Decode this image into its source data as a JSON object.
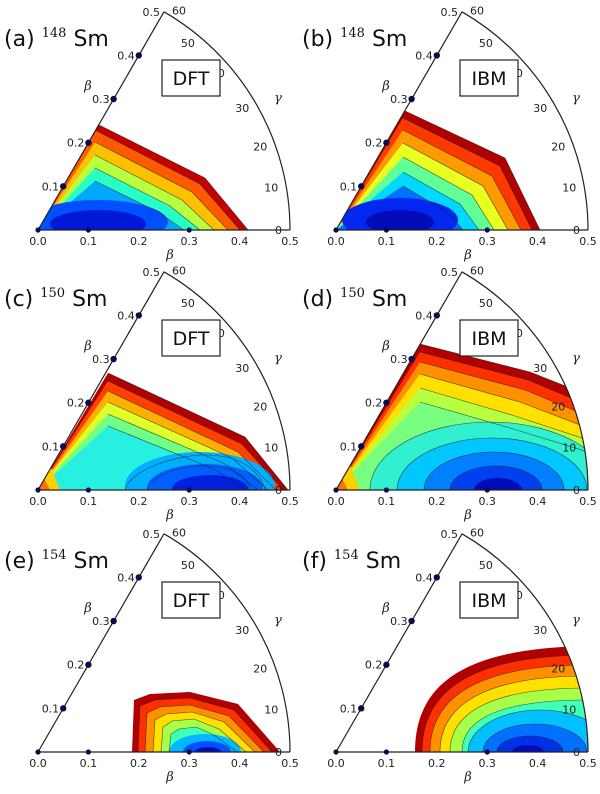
{
  "chart_data": [
    {
      "type": "heatmap",
      "panel_label": "(a)",
      "isotope_mass": "148",
      "element": "Sm",
      "method": "DFT",
      "minimum": {
        "beta": 0.12,
        "gamma": 0
      },
      "surface_extent": {
        "beta_max": 0.41,
        "gamma_max": 27
      },
      "axis_ticks": {
        "beta": [
          "0.0",
          "0.1",
          "0.2",
          "0.3",
          "0.4",
          "0.5"
        ],
        "gamma": [
          "0",
          "10",
          "20",
          "30",
          "40",
          "50",
          "60"
        ]
      }
    },
    {
      "type": "heatmap",
      "panel_label": "(b)",
      "isotope_mass": "148",
      "element": "Sm",
      "method": "IBM",
      "minimum": {
        "beta": 0.12,
        "gamma": 0
      },
      "surface_extent": {
        "beta_max": 0.4,
        "gamma_max": 35
      },
      "axis_ticks": {
        "beta": [
          "0.0",
          "0.1",
          "0.2",
          "0.3",
          "0.4",
          "0.5"
        ],
        "gamma": [
          "0",
          "10",
          "20",
          "30",
          "40",
          "50",
          "60"
        ]
      }
    },
    {
      "type": "heatmap",
      "panel_label": "(c)",
      "isotope_mass": "150",
      "element": "Sm",
      "method": "DFT",
      "minimum": {
        "beta": 0.22,
        "gamma": 2
      },
      "surface_extent": {
        "beta_max": 0.49,
        "gamma_max": 32
      },
      "axis_ticks": {
        "beta": [
          "0.0",
          "0.1",
          "0.2",
          "0.3",
          "0.4",
          "0.5"
        ],
        "gamma": [
          "0",
          "10",
          "20",
          "30",
          "40",
          "50",
          "60"
        ]
      }
    },
    {
      "type": "heatmap",
      "panel_label": "(d)",
      "isotope_mass": "150",
      "element": "Sm",
      "method": "IBM",
      "minimum": {
        "beta": 0.24,
        "gamma": 2
      },
      "surface_extent": {
        "beta_max": 0.5,
        "gamma_max": 45
      },
      "axis_ticks": {
        "beta": [
          "0.0",
          "0.1",
          "0.2",
          "0.3",
          "0.4",
          "0.5"
        ],
        "gamma": [
          "0",
          "10",
          "20",
          "30",
          "40",
          "50",
          "60"
        ]
      }
    },
    {
      "type": "heatmap",
      "panel_label": "(e)",
      "isotope_mass": "154",
      "element": "Sm",
      "method": "DFT",
      "minimum": {
        "beta": 0.33,
        "gamma": 0
      },
      "surface_extent": {
        "beta_min": 0.19,
        "beta_max": 0.48,
        "gamma_max": 17
      },
      "axis_ticks": {
        "beta": [
          "0.0",
          "0.1",
          "0.2",
          "0.3",
          "0.4",
          "0.5"
        ],
        "gamma": [
          "0",
          "10",
          "20",
          "30",
          "40",
          "50",
          "60"
        ]
      }
    },
    {
      "type": "heatmap",
      "panel_label": "(f)",
      "isotope_mass": "154",
      "element": "Sm",
      "method": "IBM",
      "minimum": {
        "beta": 0.35,
        "gamma": 0
      },
      "surface_extent": {
        "beta_min": 0.15,
        "beta_max": 0.5,
        "gamma_max": 25
      },
      "axis_ticks": {
        "beta": [
          "0.0",
          "0.1",
          "0.2",
          "0.3",
          "0.4",
          "0.5"
        ],
        "gamma": [
          "0",
          "10",
          "20",
          "30",
          "40",
          "50",
          "60"
        ]
      }
    }
  ],
  "axis_symbols": {
    "beta": "β",
    "gamma": "γ"
  }
}
